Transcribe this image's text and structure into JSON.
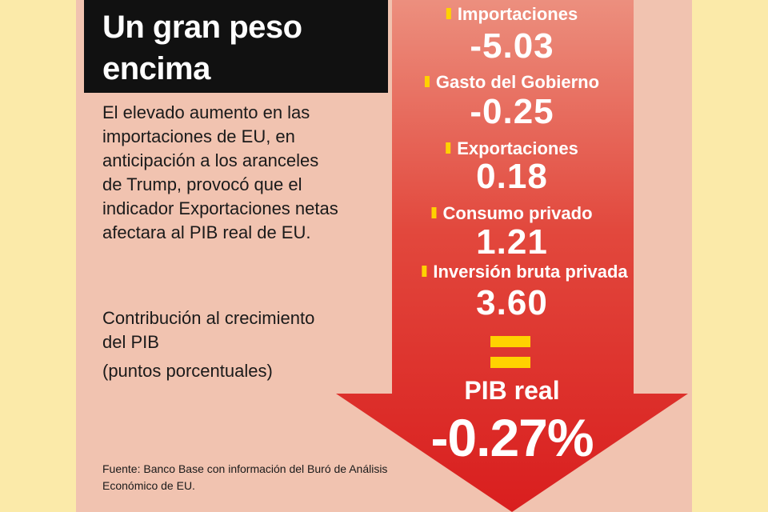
{
  "title": "Un gran peso encima",
  "description": "El elevado aumento en las importaciones de EU, en anticipación a los aranceles de Trump, provocó que el indicador Exportaciones netas afectara al PIB real de EU.",
  "measure_label": "Contribución al crecimiento del PIB",
  "unit_label": "(puntos porcentuales)",
  "source": "Fuente: Banco Base con información del Buró de Análisis Económico de EU.",
  "items": [
    {
      "label": "Importaciones",
      "value": "-5.03"
    },
    {
      "label": "Gasto del Gobierno",
      "value": "-0.25"
    },
    {
      "label": "Exportaciones",
      "value": "0.18"
    },
    {
      "label": "Consumo privado",
      "value": "1.21"
    },
    {
      "label": "Inversión bruta privada",
      "value": "3.60"
    }
  ],
  "equals_sign": "=",
  "result": {
    "label": "PIB real",
    "value": "-0.27%"
  },
  "colors": {
    "background": "#fbeaa9",
    "panel": "#f1c3b0",
    "title_box": "#111111",
    "arrow_top": "#ec8f7e",
    "arrow_bottom": "#d91e1e",
    "accent": "#ffd200"
  }
}
